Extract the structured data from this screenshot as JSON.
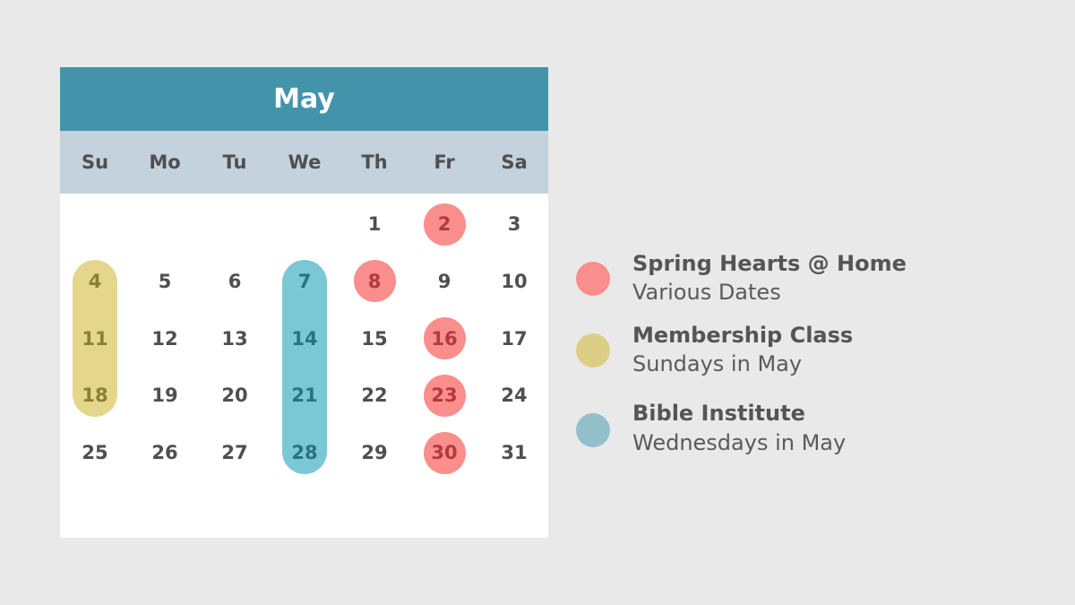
{
  "calendar": {
    "month": "May",
    "weekdays": [
      "Su",
      "Mo",
      "Tu",
      "We",
      "Th",
      "Fr",
      "Sa"
    ],
    "first_weekday_index": 4,
    "days_in_month": 31
  },
  "events": [
    {
      "title": "Spring Hearts @ Home",
      "subtitle": "Various Dates",
      "color": "#f98e8c",
      "text_color": "#b23a3c",
      "style": "circles",
      "dates": [
        2,
        8,
        16,
        23,
        30
      ]
    },
    {
      "title": "Membership Class",
      "subtitle": "Sundays in May",
      "color": "#e4d78c",
      "text_color": "#8a7f35",
      "style": "pill",
      "dates": [
        4,
        11,
        18
      ]
    },
    {
      "title": "Bible Institute",
      "subtitle": "Wednesdays in May",
      "color": "#7ac8d6",
      "text_color": "#2a7280",
      "style": "pill",
      "dates": [
        7,
        14,
        21,
        28
      ]
    }
  ],
  "legend_colors": [
    "#f98e8c",
    "#dccf85",
    "#93bfcb"
  ],
  "colors": {
    "header": "#4393ab",
    "weekday_bar": "#c3d2dc",
    "background": "#e9e9e9"
  }
}
